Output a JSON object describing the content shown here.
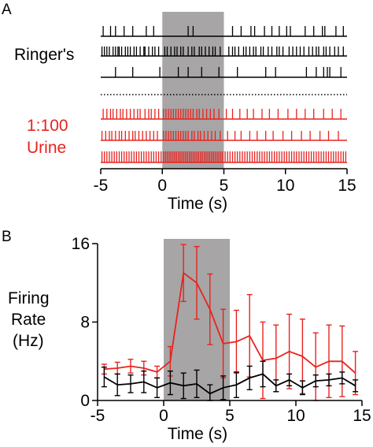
{
  "colors": {
    "ringers": "#000000",
    "urine": "#e8231f",
    "shade": "#a7a5a5"
  },
  "chart_data": [
    {
      "panel_label": "A",
      "type": "raster",
      "xlabel": "Time (s)",
      "xlim": [
        -5,
        15
      ],
      "xticks": [
        "-5",
        "0",
        "5",
        "10",
        "15"
      ],
      "stimulus_window": [
        0,
        5
      ],
      "groups": [
        {
          "label_lines": [
            "Ringer's"
          ],
          "color": "#000000",
          "trials": [
            [
              -4.8,
              -4.2,
              -3.8,
              -3.1,
              -2.4,
              -1.3,
              -0.7,
              2.1,
              2.5,
              5.7,
              6.4,
              7.2,
              7.5,
              8.3,
              8.9,
              9.5,
              10.1,
              10.4,
              11.6,
              12.3,
              13.0,
              13.2,
              14.1,
              14.7
            ],
            [
              -4.9,
              -4.7,
              -4.5,
              -4.3,
              -4.0,
              -3.8,
              -3.6,
              -3.5,
              -3.3,
              -3.0,
              -2.8,
              -2.6,
              -2.3,
              -2.1,
              -1.8,
              -1.5,
              -1.4,
              -1.1,
              -0.8,
              -0.6,
              -0.3,
              0.2,
              0.4,
              0.7,
              1.0,
              1.2,
              1.5,
              1.7,
              2.1,
              2.4,
              2.6,
              3.0,
              3.2,
              3.5,
              3.8,
              4.1,
              4.3,
              4.7,
              5.4,
              5.7,
              5.9,
              6.2,
              6.6,
              6.8,
              7.1,
              7.4,
              7.6,
              8.0,
              8.2,
              8.6,
              8.9,
              9.3,
              9.5,
              9.8,
              10.3,
              10.6,
              10.9,
              11.2,
              11.5,
              11.9,
              12.2,
              12.5,
              12.7,
              13.1,
              13.3,
              13.6,
              14.0,
              14.3,
              14.7
            ],
            [
              -3.8,
              -2.4,
              -0.2,
              1.3,
              2.1,
              3.2,
              4.6,
              6.1,
              8.4,
              9.2,
              11.7,
              12.5,
              13.1,
              13.4,
              13.6,
              14.5
            ]
          ]
        },
        {
          "label_lines": [
            "1:100",
            "Urine"
          ],
          "color": "#e8231f",
          "trials": [
            [
              -4.8,
              -4.5,
              -4.2,
              -4.0,
              -3.7,
              -3.4,
              -3.2,
              -2.9,
              -2.6,
              -2.3,
              -2.0,
              -1.8,
              -1.4,
              -1.1,
              -0.9,
              -0.6,
              -0.3,
              0.1,
              0.3,
              0.5,
              0.7,
              0.9,
              1.1,
              1.3,
              1.5,
              1.7,
              1.9,
              2.1,
              2.3,
              2.5,
              2.8,
              3.0,
              3.3,
              3.6,
              3.9,
              4.2,
              4.6,
              5.2,
              5.7,
              6.3,
              6.9,
              7.4,
              8.1,
              8.7,
              9.4,
              10.2,
              10.9,
              11.6,
              12.3,
              13.1,
              13.8,
              14.5
            ],
            [
              -4.9,
              -4.6,
              -4.3,
              -4.1,
              -3.8,
              -3.5,
              -3.3,
              -3.0,
              -2.7,
              -2.4,
              -2.2,
              -1.9,
              -1.6,
              -1.3,
              -1.0,
              -0.7,
              -0.4,
              0.1,
              0.3,
              0.5,
              0.7,
              0.9,
              1.1,
              1.3,
              1.5,
              1.7,
              1.9,
              2.1,
              2.4,
              2.6,
              2.9,
              3.1,
              3.4,
              3.7,
              4.0,
              4.3,
              4.7,
              5.3,
              5.9,
              6.4,
              7.1,
              7.7,
              8.4,
              9.0,
              9.8,
              10.5,
              11.3,
              12.0,
              12.8,
              13.5,
              14.3
            ],
            [
              -4.9,
              -4.7,
              -4.5,
              -4.3,
              -4.1,
              -3.9,
              -3.7,
              -3.5,
              -3.3,
              -3.1,
              -2.9,
              -2.7,
              -2.5,
              -2.3,
              -2.1,
              -1.9,
              -1.7,
              -1.5,
              -1.3,
              -1.1,
              -0.9,
              -0.7,
              -0.5,
              -0.3,
              -0.1,
              0.1,
              0.25,
              0.4,
              0.55,
              0.7,
              0.85,
              1.0,
              1.15,
              1.3,
              1.45,
              1.6,
              1.75,
              1.9,
              2.05,
              2.2,
              2.35,
              2.5,
              2.65,
              2.8,
              2.95,
              3.1,
              3.25,
              3.4,
              3.55,
              3.7,
              3.85,
              4.0,
              4.15,
              4.3,
              4.45,
              4.6,
              4.75,
              4.9,
              5.1,
              5.3,
              5.5,
              5.7,
              5.9,
              6.1,
              6.3,
              6.5,
              6.7,
              6.9,
              7.1,
              7.3,
              7.5,
              7.7,
              7.9,
              8.1,
              8.3,
              8.5,
              8.7,
              8.9,
              9.1,
              9.3,
              9.5,
              9.7,
              9.9,
              10.1,
              10.3,
              10.5,
              10.7,
              10.9,
              11.1,
              11.3,
              11.5,
              11.7,
              11.9,
              12.1,
              12.3,
              12.5,
              12.7,
              12.9,
              13.1,
              13.3,
              13.5,
              13.7,
              13.9,
              14.1,
              14.3,
              14.5,
              14.7,
              14.9
            ]
          ]
        }
      ]
    },
    {
      "panel_label": "B",
      "type": "line",
      "xlabel": "Time (s)",
      "ylabel_lines": [
        "Firing",
        "Rate",
        "(Hz)"
      ],
      "xlim": [
        -5,
        15
      ],
      "ylim": [
        0,
        16
      ],
      "xticks": [
        "-5",
        "0",
        "5",
        "10",
        "15"
      ],
      "yticks": [
        "0",
        "8",
        "16"
      ],
      "stimulus_window": [
        0,
        5
      ],
      "x": [
        -4.5,
        -3.5,
        -2.5,
        -1.5,
        -0.5,
        0.5,
        1.5,
        2.5,
        3.5,
        4.5,
        5.5,
        6.5,
        7.5,
        8.5,
        9.5,
        10.5,
        11.5,
        12.5,
        13.5,
        14.5
      ],
      "series": [
        {
          "color": "#e8231f",
          "values": [
            3.2,
            3.3,
            3.5,
            3.3,
            2.9,
            4.0,
            13.0,
            12.0,
            9.3,
            5.8,
            6.0,
            6.6,
            4.1,
            4.3,
            5.0,
            4.5,
            3.4,
            4.0,
            4.0,
            2.8
          ],
          "err": [
            0.5,
            0.6,
            0.7,
            0.7,
            0.6,
            1.5,
            2.9,
            3.7,
            3.6,
            3.5,
            3.2,
            4.2,
            3.9,
            3.4,
            3.8,
            3.8,
            3.5,
            3.7,
            3.6,
            2.2
          ]
        },
        {
          "color": "#000000",
          "values": [
            2.4,
            1.6,
            1.7,
            1.9,
            1.3,
            1.8,
            1.5,
            1.7,
            0.7,
            1.3,
            1.6,
            2.3,
            2.7,
            1.5,
            2.1,
            1.3,
            2.0,
            2.1,
            2.3,
            1.5
          ],
          "err": [
            1.0,
            1.1,
            0.9,
            1.1,
            1.0,
            1.2,
            1.3,
            1.4,
            0.9,
            1.2,
            1.3,
            1.2,
            1.3,
            0.6,
            0.6,
            0.7,
            0.6,
            0.6,
            0.6,
            0.6
          ]
        }
      ]
    }
  ]
}
